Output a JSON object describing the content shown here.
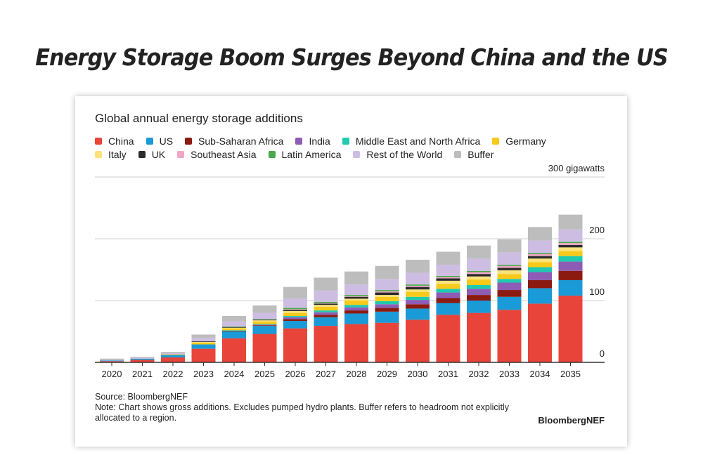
{
  "headline": "Energy Storage Boom Surges Beyond China and the US",
  "source": "Source: BloombergNEF",
  "note": "Note: Chart shows gross additions. Excludes pumped hydro plants. Buffer refers to headroom not explicitly allocated to a region.",
  "brand": "BloombergNEF",
  "chart_data": {
    "type": "bar",
    "stacked": true,
    "title": "Global annual energy storage additions",
    "ylabel": "",
    "unit_label": "300 gigawatts",
    "ylim": [
      0,
      300
    ],
    "yticks": [
      "0",
      "100",
      "200"
    ],
    "grid": true,
    "legend_position": "top",
    "categories": [
      "2020",
      "2021",
      "2022",
      "2023",
      "2024",
      "2025",
      "2026",
      "2027",
      "2028",
      "2029",
      "2030",
      "2031",
      "2032",
      "2033",
      "2034",
      "2035"
    ],
    "series": [
      {
        "name": "China",
        "color": "#e8443a",
        "values": [
          2,
          4,
          8,
          22,
          39,
          46,
          55,
          59,
          62,
          64,
          69,
          77,
          80,
          85,
          95,
          108
        ]
      },
      {
        "name": "US",
        "color": "#1a9ad6",
        "values": [
          1,
          2,
          4,
          7,
          11,
          13,
          12,
          14,
          17,
          18,
          18,
          19,
          20,
          21,
          25,
          25
        ]
      },
      {
        "name": "Sub-Saharan Africa",
        "color": "#8b1a10",
        "values": [
          0,
          0,
          0,
          0,
          1,
          1,
          3,
          4,
          5,
          6,
          7,
          8,
          9,
          11,
          13,
          15
        ]
      },
      {
        "name": "India",
        "color": "#8e5bb5",
        "values": [
          0,
          0,
          0,
          0,
          0,
          1,
          3,
          4,
          5,
          6,
          7,
          9,
          10,
          12,
          13,
          15
        ]
      },
      {
        "name": "Middle East and North Africa",
        "color": "#20c9b0",
        "values": [
          0,
          0,
          0,
          0,
          1,
          1,
          2,
          3,
          4,
          5,
          5,
          6,
          6,
          6,
          8,
          9
        ]
      },
      {
        "name": "Germany",
        "color": "#f6c91a",
        "values": [
          0,
          0,
          1,
          3,
          3,
          4,
          5,
          6,
          7,
          7,
          8,
          8,
          9,
          8,
          8,
          8
        ]
      },
      {
        "name": "Italy",
        "color": "#fbe27a",
        "values": [
          0,
          0,
          0,
          1,
          1,
          2,
          3,
          3,
          3,
          3,
          4,
          5,
          5,
          6,
          6,
          6
        ]
      },
      {
        "name": "UK",
        "color": "#2b2b2b",
        "values": [
          0,
          0,
          0,
          1,
          1,
          1,
          2,
          2,
          3,
          4,
          4,
          4,
          4,
          4,
          4,
          4
        ]
      },
      {
        "name": "Southeast Asia",
        "color": "#f0a6c6",
        "values": [
          0,
          0,
          0,
          0,
          0,
          0,
          1,
          1,
          1,
          2,
          2,
          2,
          3,
          3,
          3,
          3
        ]
      },
      {
        "name": "Latin America",
        "color": "#4aa84a",
        "values": [
          0,
          0,
          0,
          0,
          1,
          1,
          2,
          2,
          2,
          2,
          2,
          2,
          2,
          2,
          2,
          2
        ]
      },
      {
        "name": "Rest of the World",
        "color": "#cdbde3",
        "values": [
          1,
          1,
          2,
          5,
          8,
          10,
          15,
          18,
          17,
          18,
          19,
          18,
          20,
          20,
          20,
          20
        ]
      },
      {
        "name": "Buffer",
        "color": "#bdbdbd",
        "values": [
          2,
          2,
          2,
          6,
          9,
          12,
          19,
          21,
          21,
          21,
          21,
          21,
          21,
          21,
          22,
          24
        ]
      }
    ]
  }
}
